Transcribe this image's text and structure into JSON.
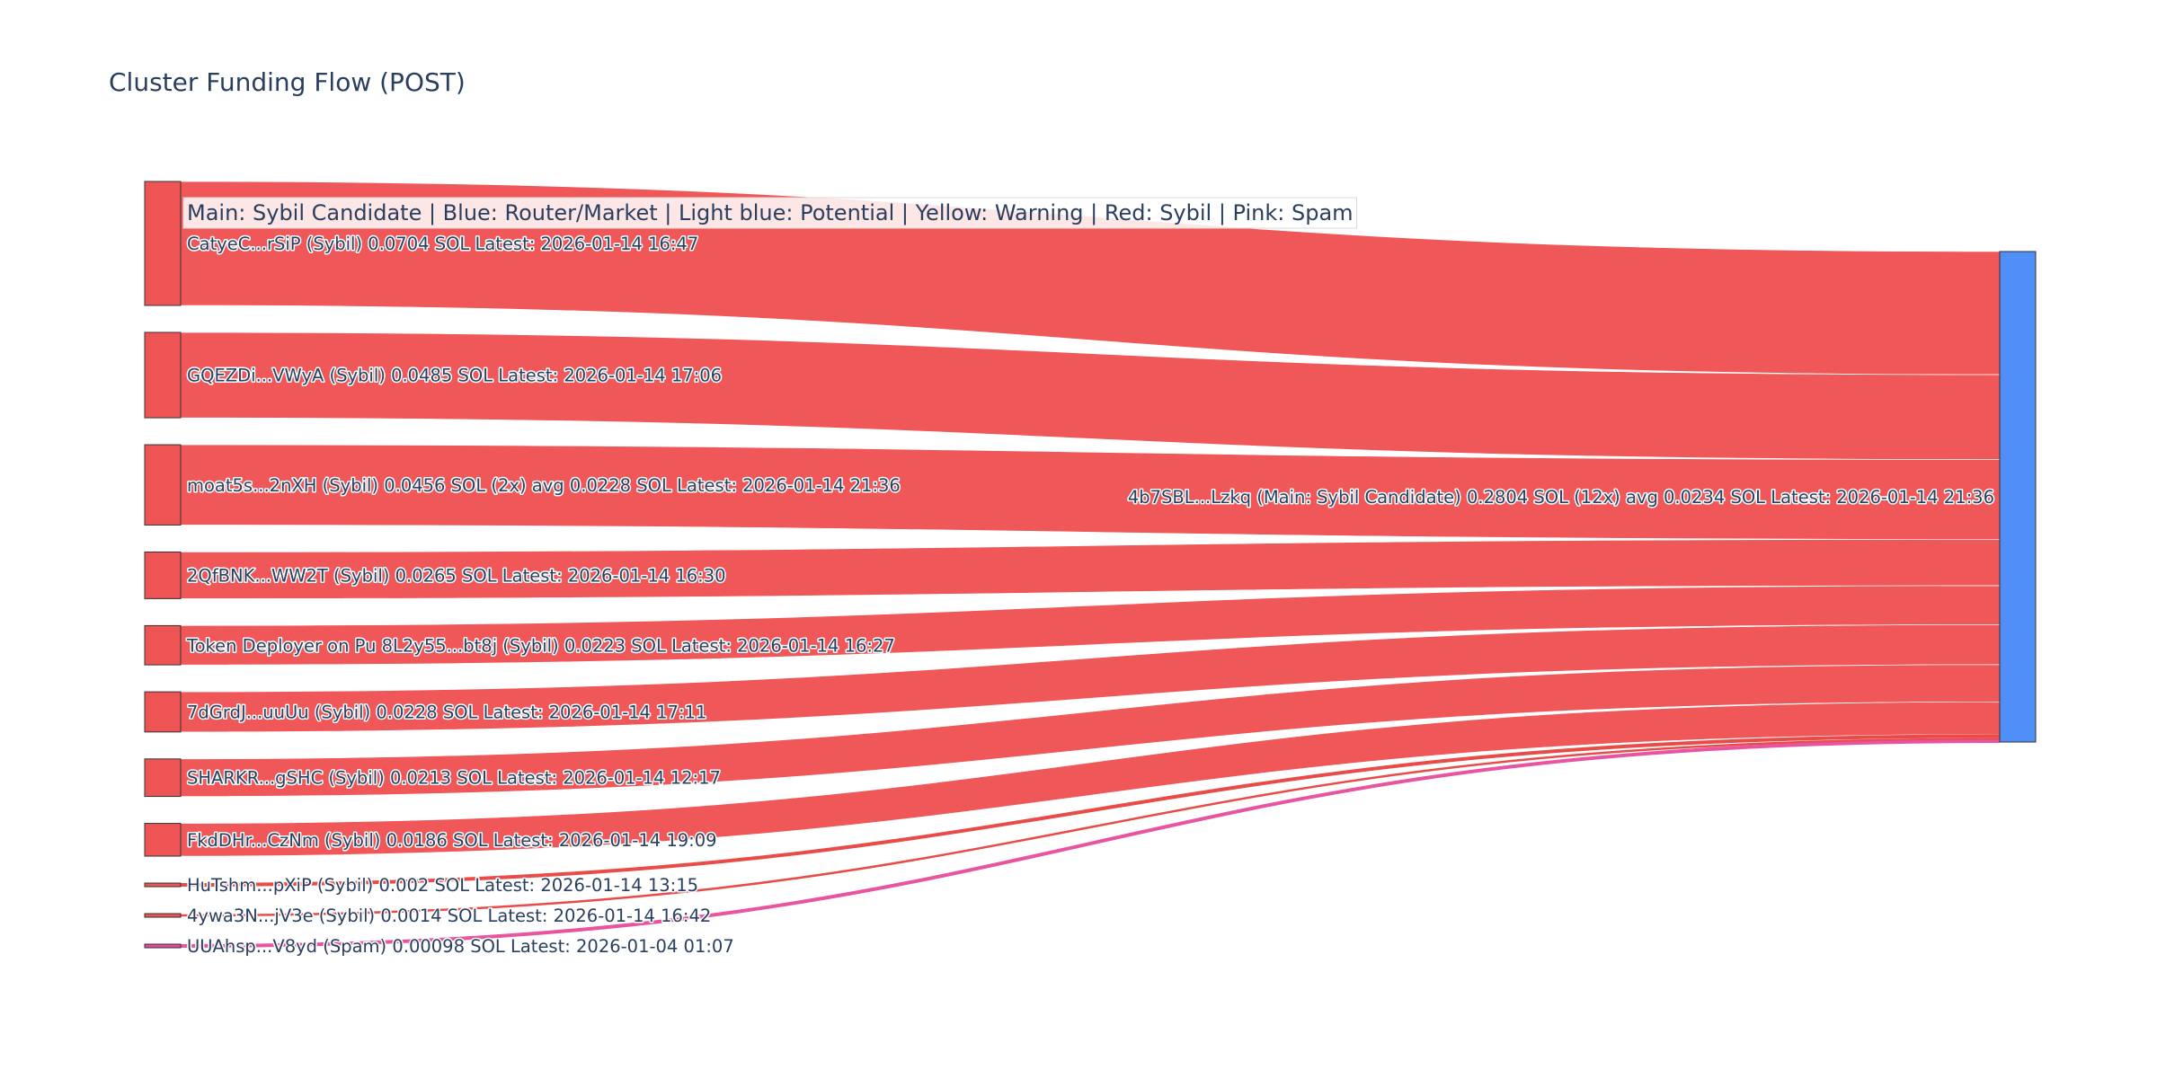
{
  "chart_data": {
    "type": "sankey",
    "title": "Cluster Funding Flow (POST)",
    "legend_note": "Main: Sybil Candidate  |  Blue: Router/Market | Light blue: Potential | Yellow: Warning | Red: Sybil | Pink: Spam",
    "colors": {
      "sybil": "#ef5455",
      "sybil_thin": "#e8413e",
      "spam": "#e74b9b",
      "target": "#4f8ff7",
      "node_border": "#333333"
    },
    "target": {
      "label": "4b7SBL...Lzkq (Main: Sybil Candidate) 0.2804 SOL (12x) avg 0.0234 SOL Latest: 2026-01-14 21:36",
      "value": 0.2804,
      "color_key": "target"
    },
    "sources": [
      {
        "label": "CatyeC...rSiP (Sybil) 0.0704 SOL Latest: 2026-01-14 16:47",
        "value": 0.0704,
        "category": "sybil"
      },
      {
        "label": "GQEZDi...VWyA (Sybil) 0.0485 SOL Latest: 2026-01-14 17:06",
        "value": 0.0485,
        "category": "sybil"
      },
      {
        "label": "moat5s...2nXH (Sybil) 0.0456 SOL (2x) avg 0.0228 SOL Latest: 2026-01-14 21:36",
        "value": 0.0456,
        "category": "sybil"
      },
      {
        "label": "2QfBNK...WW2T (Sybil) 0.0265 SOL Latest: 2026-01-14 16:30",
        "value": 0.0265,
        "category": "sybil"
      },
      {
        "label": "Token Deployer on Pu 8L2y55...bt8j (Sybil) 0.0223 SOL Latest: 2026-01-14 16:27",
        "value": 0.0223,
        "category": "sybil"
      },
      {
        "label": "7dGrdJ...uuUu (Sybil) 0.0228 SOL Latest: 2026-01-14 17:11",
        "value": 0.0228,
        "category": "sybil"
      },
      {
        "label": "SHARKR...gSHC (Sybil) 0.0213 SOL Latest: 2026-01-14 12:17",
        "value": 0.0213,
        "category": "sybil"
      },
      {
        "label": "FkdDHr...CzNm (Sybil) 0.0186 SOL Latest: 2026-01-14 19:09",
        "value": 0.0186,
        "category": "sybil"
      },
      {
        "label": "HuTshm...pXiP (Sybil) 0.002 SOL Latest: 2026-01-14 13:15",
        "value": 0.002,
        "category": "sybil"
      },
      {
        "label": "4ywa3N...jV3e (Sybil) 0.0014 SOL Latest: 2026-01-14 16:42",
        "value": 0.0014,
        "category": "sybil"
      },
      {
        "label": "UUAhsp...V8yd (Spam) 0.00098 SOL Latest: 2026-01-04 01:07",
        "value": 0.00098,
        "category": "spam"
      }
    ]
  }
}
